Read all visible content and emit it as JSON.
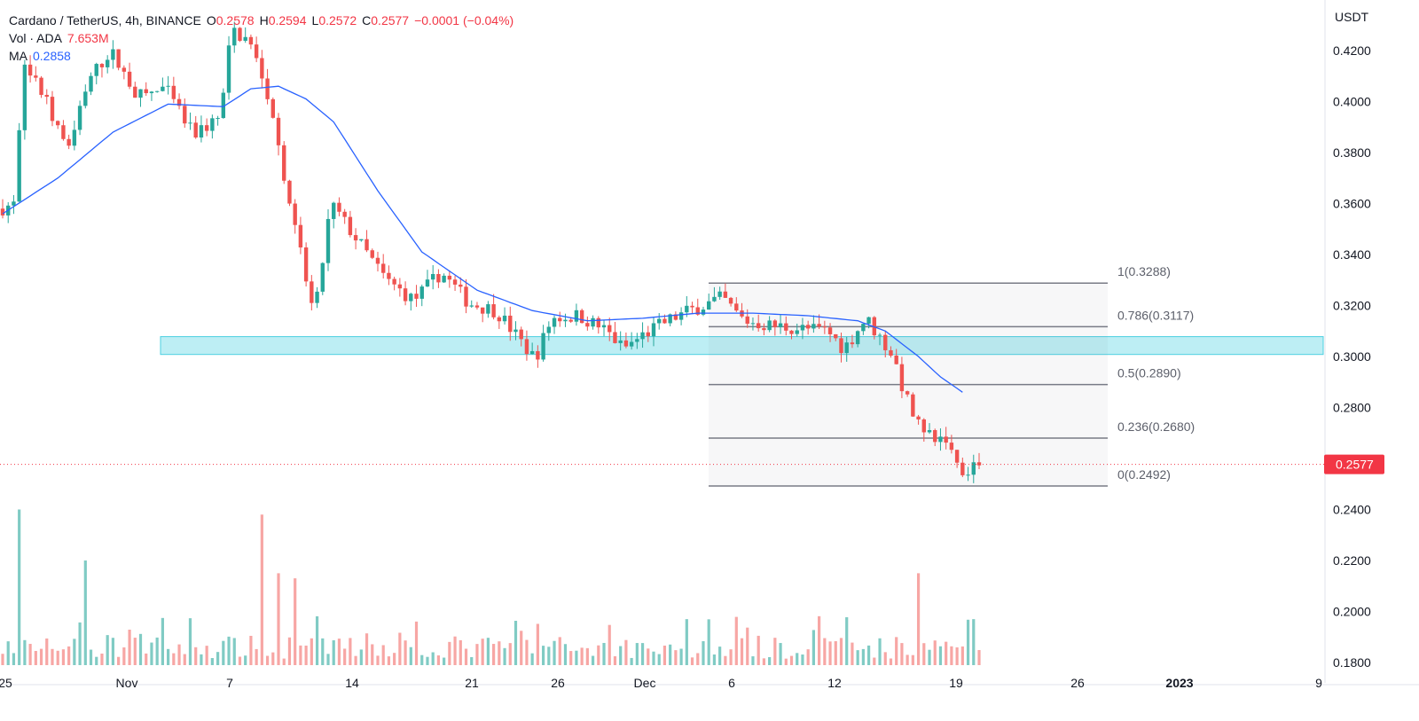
{
  "header": {
    "symbol": "Cardano / TetherUS, 4h, BINANCE",
    "o_label": "O",
    "o_value": "0.2578",
    "h_label": "H",
    "h_value": "0.2594",
    "l_label": "L",
    "l_value": "0.2572",
    "c_label": "C",
    "c_value": "0.2577",
    "change": "−0.0001 (−0.04%)",
    "vol_label": "Vol · ADA",
    "vol_value": "7.653M",
    "ma_label": "MA",
    "ma_value": "0.2858"
  },
  "colors": {
    "up": "#26a69a",
    "down": "#ef5350",
    "up_vol": "#80cbc4",
    "down_vol": "#f7a6a4",
    "ma": "#2962ff",
    "zone": "#b2ebf2",
    "zone_border": "#4dd0e1",
    "price_tag": "#f23645",
    "fib_line": "#787b86"
  },
  "chart_data": {
    "type": "candlestick",
    "title": "Cardano / TetherUS, 4h, BINANCE",
    "currency": "USDT",
    "ylim": [
      0.18,
      0.43
    ],
    "y_ticks": [
      "0.4200",
      "0.4000",
      "0.3800",
      "0.3600",
      "0.3400",
      "0.3200",
      "0.3000",
      "0.2800",
      "0.2400",
      "0.2200",
      "0.2000",
      "0.1800"
    ],
    "x_ticks": [
      "25",
      "Nov",
      "7",
      "14",
      "21",
      "26",
      "Dec",
      "6",
      "12",
      "19",
      "26",
      "2023",
      "9"
    ],
    "last_price": "0.2577",
    "ma_last": "0.2858",
    "support_zone": [
      0.3008,
      0.3078
    ],
    "fibonacci": [
      {
        "level": "1",
        "price": "0.3288"
      },
      {
        "level": "0.786",
        "price": "0.3117"
      },
      {
        "level": "0.5",
        "price": "0.2890"
      },
      {
        "level": "0.236",
        "price": "0.2680"
      },
      {
        "level": "0",
        "price": "0.2492"
      }
    ],
    "price_path": [
      [
        0,
        0.358
      ],
      [
        3,
        0.36
      ],
      [
        4,
        0.415
      ],
      [
        8,
        0.402
      ],
      [
        12,
        0.38
      ],
      [
        16,
        0.408
      ],
      [
        20,
        0.42
      ],
      [
        25,
        0.402
      ],
      [
        30,
        0.405
      ],
      [
        35,
        0.387
      ],
      [
        40,
        0.394
      ],
      [
        42,
        0.428
      ],
      [
        45,
        0.424
      ],
      [
        48,
        0.408
      ],
      [
        50,
        0.388
      ],
      [
        53,
        0.355
      ],
      [
        56,
        0.325
      ],
      [
        57,
        0.315
      ],
      [
        60,
        0.36
      ],
      [
        65,
        0.345
      ],
      [
        70,
        0.33
      ],
      [
        75,
        0.322
      ],
      [
        80,
        0.333
      ],
      [
        85,
        0.321
      ],
      [
        90,
        0.318
      ],
      [
        94,
        0.307
      ],
      [
        97,
        0.299
      ],
      [
        100,
        0.315
      ],
      [
        105,
        0.316
      ],
      [
        110,
        0.31
      ],
      [
        113,
        0.303
      ],
      [
        117,
        0.309
      ],
      [
        121,
        0.314
      ],
      [
        125,
        0.318
      ],
      [
        131,
        0.323
      ],
      [
        133,
        0.318
      ],
      [
        135,
        0.314
      ],
      [
        140,
        0.312
      ],
      [
        145,
        0.311
      ],
      [
        150,
        0.31
      ],
      [
        153,
        0.303
      ],
      [
        157,
        0.315
      ],
      [
        162,
        0.3
      ],
      [
        164,
        0.285
      ],
      [
        167,
        0.27
      ],
      [
        169,
        0.268
      ],
      [
        172,
        0.267
      ],
      [
        174,
        0.255
      ],
      [
        177,
        0.258
      ]
    ],
    "ma_path": [
      [
        0,
        0.356
      ],
      [
        10,
        0.37
      ],
      [
        20,
        0.388
      ],
      [
        30,
        0.399
      ],
      [
        40,
        0.398
      ],
      [
        45,
        0.405
      ],
      [
        50,
        0.406
      ],
      [
        55,
        0.401
      ],
      [
        60,
        0.392
      ],
      [
        68,
        0.365
      ],
      [
        76,
        0.341
      ],
      [
        86,
        0.326
      ],
      [
        96,
        0.318
      ],
      [
        106,
        0.314
      ],
      [
        116,
        0.315
      ],
      [
        126,
        0.317
      ],
      [
        136,
        0.317
      ],
      [
        146,
        0.316
      ],
      [
        155,
        0.314
      ],
      [
        160,
        0.31
      ],
      [
        166,
        0.3
      ],
      [
        170,
        0.292
      ],
      [
        174,
        0.286
      ]
    ],
    "volume_spikes": [
      [
        3,
        0.24
      ],
      [
        15,
        0.22
      ],
      [
        47,
        0.238
      ],
      [
        50,
        0.215
      ],
      [
        53,
        0.213
      ],
      [
        166,
        0.215
      ],
      [
        176,
        0.197
      ]
    ]
  }
}
